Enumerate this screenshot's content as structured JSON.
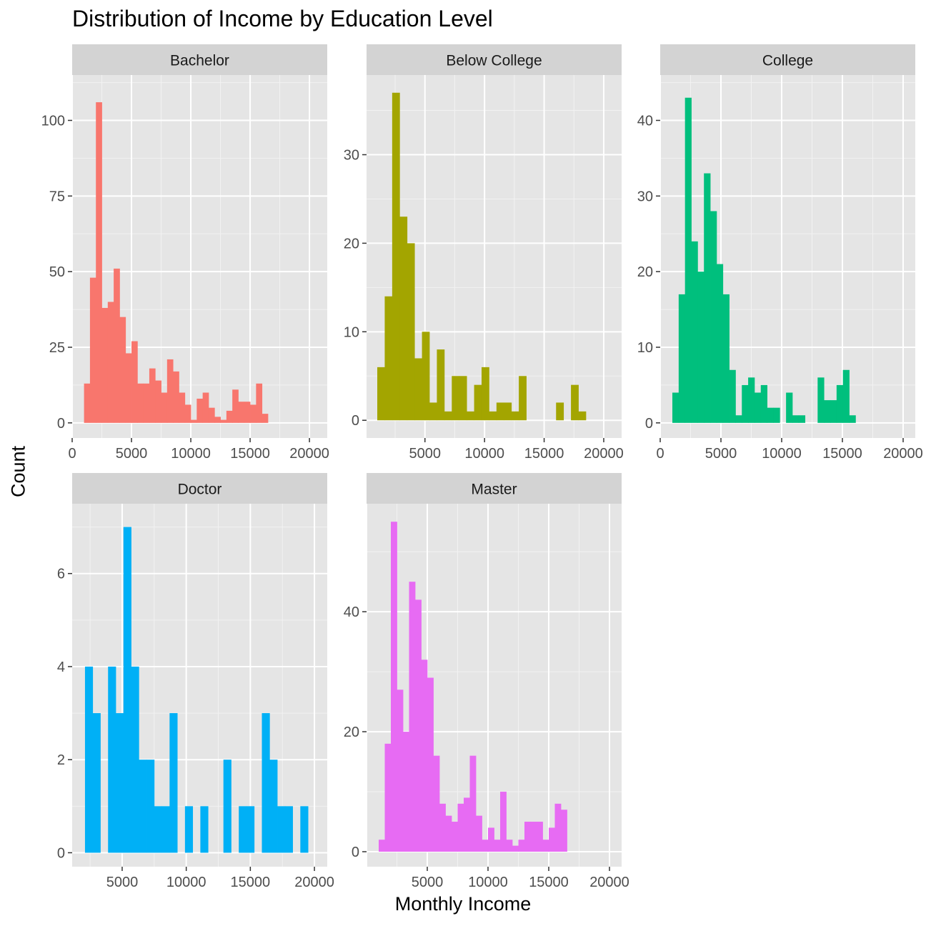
{
  "title": "Distribution of Income by Education Level",
  "xlabel": "Monthly Income",
  "ylabel": "Count",
  "chart_data": {
    "type": "bar",
    "subtype": "faceted-histogram",
    "grid": true,
    "background": "#e5e5e5",
    "strip_background": "#d3d3d3",
    "x_ticks": [
      0,
      5000,
      10000,
      15000,
      20000
    ],
    "facets": [
      {
        "name": "Bachelor",
        "color": "#F8766D",
        "xlim": [
          0,
          21500
        ],
        "ylim": [
          -5,
          115
        ],
        "yticks": [
          0,
          25,
          50,
          75,
          100
        ],
        "xticks": [
          0,
          5000,
          10000,
          15000,
          20000
        ],
        "bin_start": 1000,
        "bin_width": 500,
        "values": [
          13,
          48,
          106,
          38,
          40,
          51,
          35,
          23,
          27,
          13,
          13,
          18,
          14,
          10,
          21,
          17,
          10,
          6,
          1,
          8,
          10,
          5,
          2,
          1,
          4,
          11,
          7,
          7,
          6,
          13,
          3
        ]
      },
      {
        "name": "Below College",
        "color": "#A3A500",
        "xlim": [
          100,
          21500
        ],
        "ylim": [
          -2,
          39
        ],
        "yticks": [
          0,
          10,
          20,
          30
        ],
        "xticks": [
          5000,
          10000,
          15000,
          20000
        ],
        "bin_start": 1000,
        "bin_width": 625,
        "values": [
          6,
          14,
          37,
          23,
          20,
          7,
          10,
          2,
          8,
          1,
          5,
          5,
          1,
          4,
          6,
          1,
          2,
          2,
          1,
          5,
          0,
          0,
          0,
          0,
          2,
          0,
          4,
          1
        ]
      },
      {
        "name": "College",
        "color": "#00BF7D",
        "xlim": [
          0,
          21000
        ],
        "ylim": [
          -2,
          46
        ],
        "yticks": [
          0,
          10,
          20,
          30,
          40
        ],
        "xticks": [
          0,
          5000,
          10000,
          15000,
          20000
        ],
        "bin_start": 1000,
        "bin_width": 520,
        "values": [
          4,
          17,
          43,
          24,
          20,
          33,
          28,
          21,
          17,
          7,
          1,
          5,
          6,
          4,
          5,
          2,
          2,
          0,
          4,
          1,
          1,
          0,
          0,
          6,
          3,
          3,
          5,
          7,
          1
        ]
      },
      {
        "name": "Doctor",
        "color": "#00B0F6",
        "xlim": [
          1100,
          21000
        ],
        "ylim": [
          -0.3,
          7.5
        ],
        "yticks": [
          0,
          2,
          4,
          6
        ],
        "xticks": [
          5000,
          10000,
          15000,
          20000
        ],
        "bin_start": 2100,
        "bin_width": 600,
        "values": [
          4,
          3,
          0,
          4,
          3,
          7,
          4,
          2,
          2,
          1,
          1,
          3,
          0,
          1,
          0,
          1,
          0,
          0,
          2,
          0,
          1,
          1,
          0,
          3,
          2,
          1,
          1,
          0,
          1
        ]
      },
      {
        "name": "Master",
        "color": "#E76BF3",
        "xlim": [
          0,
          21000
        ],
        "ylim": [
          -2.5,
          58
        ],
        "yticks": [
          0,
          20,
          40
        ],
        "xticks": [
          5000,
          10000,
          15000,
          20000
        ],
        "bin_start": 1000,
        "bin_width": 500,
        "values": [
          2,
          18,
          55,
          27,
          20,
          45,
          42,
          32,
          29,
          16,
          8,
          6,
          5,
          8,
          9,
          16,
          6,
          2,
          4,
          2,
          10,
          2,
          1,
          2,
          5,
          5,
          5,
          2,
          4,
          8,
          7
        ]
      }
    ]
  }
}
